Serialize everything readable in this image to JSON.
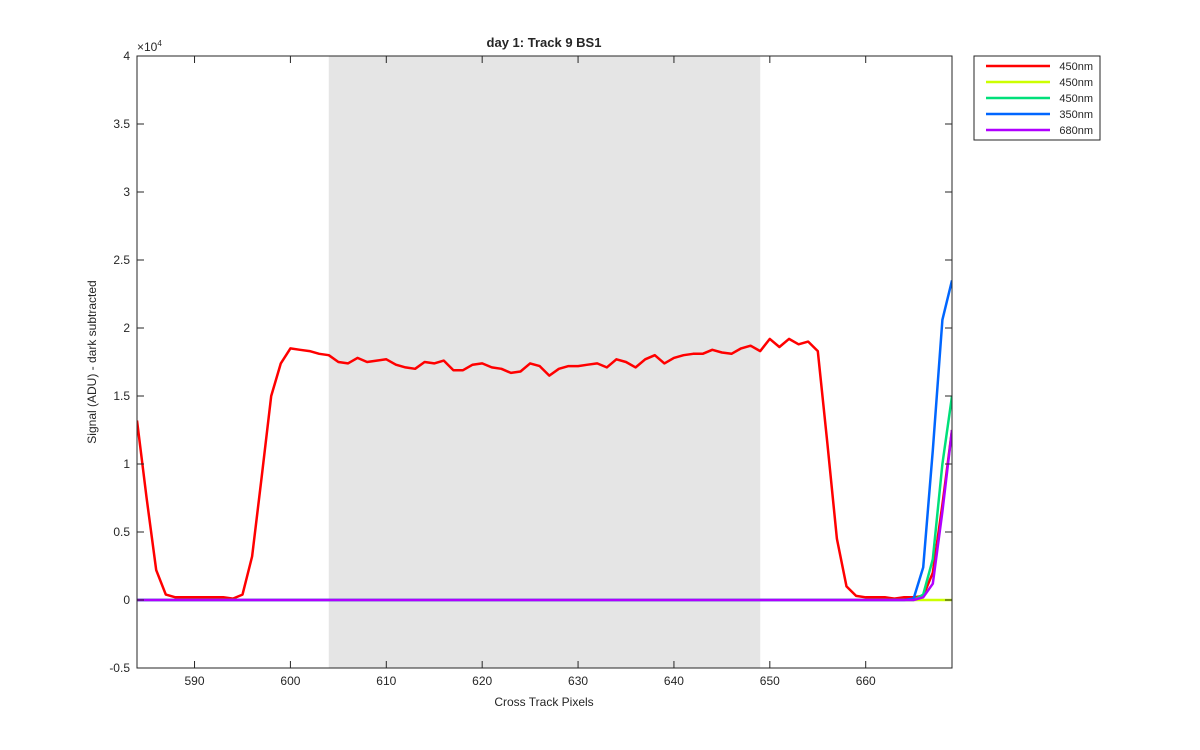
{
  "chart_data": {
    "type": "line",
    "title": "day 1: Track 9  BS1",
    "xlabel": "Cross Track Pixels",
    "ylabel": "Signal (ADU) - dark subtracted",
    "y_multiplier_label": "×10",
    "y_multiplier_exponent": "4",
    "xlim": [
      584,
      669
    ],
    "ylim": [
      -0.5,
      4
    ],
    "x_ticks": [
      590,
      600,
      610,
      620,
      630,
      640,
      650,
      660
    ],
    "y_ticks": [
      -0.5,
      0,
      0.5,
      1,
      1.5,
      2,
      2.5,
      3,
      3.5,
      4
    ],
    "y_tick_labels": [
      "-0.5",
      "0",
      "0.5",
      "1",
      "1.5",
      "2",
      "2.5",
      "3",
      "3.5",
      "4"
    ],
    "shaded_region": [
      604,
      649
    ],
    "shaded_color": "#e5e5e5",
    "grid": false,
    "legend_position": "outside-top-right",
    "x": [
      584,
      585,
      586,
      587,
      588,
      589,
      590,
      591,
      592,
      593,
      594,
      595,
      596,
      597,
      598,
      599,
      600,
      601,
      602,
      603,
      604,
      605,
      606,
      607,
      608,
      609,
      610,
      611,
      612,
      613,
      614,
      615,
      616,
      617,
      618,
      619,
      620,
      621,
      622,
      623,
      624,
      625,
      626,
      627,
      628,
      629,
      630,
      631,
      632,
      633,
      634,
      635,
      636,
      637,
      638,
      639,
      640,
      641,
      642,
      643,
      644,
      645,
      646,
      647,
      648,
      649,
      650,
      651,
      652,
      653,
      654,
      655,
      656,
      657,
      658,
      659,
      660,
      661,
      662,
      663,
      664,
      665,
      666,
      667,
      668,
      669
    ],
    "series": [
      {
        "name": "450nm",
        "color": "#ff0000",
        "values": [
          1.32,
          0.75,
          0.22,
          0.04,
          0.02,
          0.02,
          0.02,
          0.02,
          0.02,
          0.02,
          0.01,
          0.04,
          0.32,
          0.9,
          1.5,
          1.74,
          1.85,
          1.84,
          1.83,
          1.81,
          1.8,
          1.75,
          1.74,
          1.78,
          1.75,
          1.76,
          1.77,
          1.73,
          1.71,
          1.7,
          1.75,
          1.74,
          1.76,
          1.69,
          1.69,
          1.73,
          1.74,
          1.71,
          1.7,
          1.67,
          1.68,
          1.74,
          1.72,
          1.65,
          1.7,
          1.72,
          1.72,
          1.73,
          1.74,
          1.71,
          1.77,
          1.75,
          1.71,
          1.77,
          1.8,
          1.74,
          1.78,
          1.8,
          1.81,
          1.81,
          1.84,
          1.82,
          1.81,
          1.85,
          1.87,
          1.83,
          1.92,
          1.86,
          1.92,
          1.88,
          1.9,
          1.83,
          1.15,
          0.45,
          0.1,
          0.03,
          0.02,
          0.02,
          0.02,
          0.01,
          0.02,
          0.02,
          0.03,
          0.2,
          0.7,
          1.25
        ]
      },
      {
        "name": "450nm",
        "color": "#ccff00",
        "values": [
          0,
          0,
          0,
          0,
          0,
          0,
          0,
          0,
          0,
          0,
          0,
          0,
          0,
          0,
          0,
          0,
          0,
          0,
          0,
          0,
          0,
          0,
          0,
          0,
          0,
          0,
          0,
          0,
          0,
          0,
          0,
          0,
          0,
          0,
          0,
          0,
          0,
          0,
          0,
          0,
          0,
          0,
          0,
          0,
          0,
          0,
          0,
          0,
          0,
          0,
          0,
          0,
          0,
          0,
          0,
          0,
          0,
          0,
          0,
          0,
          0,
          0,
          0,
          0,
          0,
          0,
          0,
          0,
          0,
          0,
          0,
          0,
          0,
          0,
          0,
          0,
          0,
          0,
          0,
          0,
          0,
          0,
          0,
          0,
          0,
          0
        ]
      },
      {
        "name": "450nm",
        "color": "#00e07a",
        "values": [
          0,
          0,
          0,
          0,
          0,
          0,
          0,
          0,
          0,
          0,
          0,
          0,
          0,
          0,
          0,
          0,
          0,
          0,
          0,
          0,
          0,
          0,
          0,
          0,
          0,
          0,
          0,
          0,
          0,
          0,
          0,
          0,
          0,
          0,
          0,
          0,
          0,
          0,
          0,
          0,
          0,
          0,
          0,
          0,
          0,
          0,
          0,
          0,
          0,
          0,
          0,
          0,
          0,
          0,
          0,
          0,
          0,
          0,
          0,
          0,
          0,
          0,
          0,
          0,
          0,
          0,
          0,
          0,
          0,
          0,
          0,
          0,
          0,
          0,
          0,
          0,
          0,
          0,
          0,
          0,
          0,
          0,
          0.04,
          0.3,
          1.0,
          1.5
        ]
      },
      {
        "name": "350nm",
        "color": "#0066ff",
        "values": [
          0,
          0,
          0,
          0,
          0,
          0,
          0,
          0,
          0,
          0,
          0,
          0,
          0,
          0,
          0,
          0,
          0,
          0,
          0,
          0,
          0,
          0,
          0,
          0,
          0,
          0,
          0,
          0,
          0,
          0,
          0,
          0,
          0,
          0,
          0,
          0,
          0,
          0,
          0,
          0,
          0,
          0,
          0,
          0,
          0,
          0,
          0,
          0,
          0,
          0,
          0,
          0,
          0,
          0,
          0,
          0,
          0,
          0,
          0,
          0,
          0,
          0,
          0,
          0,
          0,
          0,
          0,
          0,
          0,
          0,
          0,
          0,
          0,
          0,
          0,
          0,
          0,
          0,
          0,
          0,
          0,
          0.01,
          0.24,
          1.1,
          2.06,
          2.35
        ]
      },
      {
        "name": "680nm",
        "color": "#b000ff",
        "values": [
          0,
          0,
          0,
          0,
          0,
          0,
          0,
          0,
          0,
          0,
          0,
          0,
          0,
          0,
          0,
          0,
          0,
          0,
          0,
          0,
          0,
          0,
          0,
          0,
          0,
          0,
          0,
          0,
          0,
          0,
          0,
          0,
          0,
          0,
          0,
          0,
          0,
          0,
          0,
          0,
          0,
          0,
          0,
          0,
          0,
          0,
          0,
          0,
          0,
          0,
          0,
          0,
          0,
          0,
          0,
          0,
          0,
          0,
          0,
          0,
          0,
          0,
          0,
          0,
          0,
          0,
          0,
          0,
          0,
          0,
          0,
          0,
          0,
          0,
          0,
          0,
          0,
          0,
          0,
          0,
          0,
          0,
          0.02,
          0.12,
          0.65,
          1.25
        ]
      }
    ]
  }
}
